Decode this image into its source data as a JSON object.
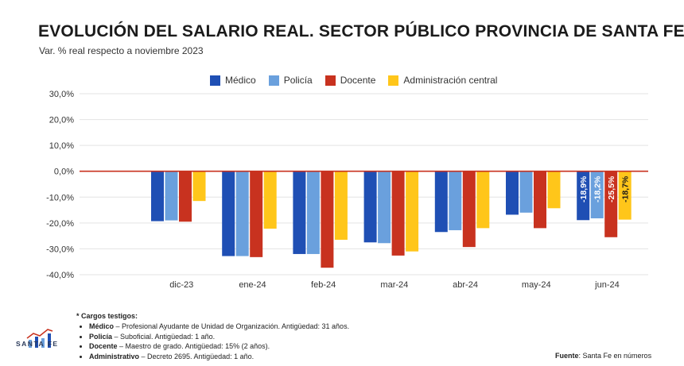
{
  "title": "EVOLUCIÓN DEL SALARIO REAL. SECTOR PÚBLICO PROVINCIA DE SANTA FE*",
  "subtitle": "Var. % real respecto a noviembre 2023",
  "chart_data": {
    "type": "bar",
    "categories": [
      "dic-23",
      "ene-24",
      "feb-24",
      "mar-24",
      "abr-24",
      "may-24",
      "jun-24"
    ],
    "series": [
      {
        "name": "Médico",
        "color": "#1f4fb4",
        "values": [
          -19.3,
          -32.8,
          -32.0,
          -27.5,
          -23.5,
          -16.8,
          -18.9
        ]
      },
      {
        "name": "Policía",
        "color": "#6aa0dd",
        "values": [
          -19.0,
          -32.8,
          -32.0,
          -27.8,
          -22.8,
          -16.0,
          -18.2
        ]
      },
      {
        "name": "Docente",
        "color": "#c8321f",
        "values": [
          -19.5,
          -33.2,
          -37.3,
          -32.6,
          -29.3,
          -22.0,
          -25.5
        ]
      },
      {
        "name": "Administración central",
        "color": "#ffc61a",
        "values": [
          -11.5,
          -22.2,
          -26.5,
          -31.0,
          -22.0,
          -14.3,
          -18.7
        ]
      }
    ],
    "data_labels": {
      "jun-24": [
        "-18,9%",
        "-18,2%",
        "-25,5%",
        "-18,7%"
      ]
    },
    "ylim": [
      -40,
      30
    ],
    "yticks": [
      "30,0%",
      "20,0%",
      "10,0%",
      "0,0%",
      "-10,0%",
      "-20,0%",
      "-30,0%",
      "-40,0%"
    ],
    "ytick_values": [
      30,
      20,
      10,
      0,
      -10,
      -20,
      -30,
      -40
    ],
    "zero_line_color": "#c8321f",
    "grid": true,
    "legend": "top-center"
  },
  "notes": {
    "header": "* Cargos testigos:",
    "items": [
      {
        "term": "Médico",
        "desc": " – Profesional Ayudante de Unidad de Organización. Antigüedad: 31 años."
      },
      {
        "term": "Policía",
        "desc": " – Suboficial. Antigüedad: 1 año."
      },
      {
        "term": "Docente",
        "desc": " – Maestro de grado. Antigüedad: 15% (2 años)."
      },
      {
        "term": "Administrativo",
        "desc": " – Decreto 2695. Antigüedad: 1 año."
      }
    ]
  },
  "source": {
    "label": "Fuente",
    "text": ": Santa Fe en números"
  },
  "logo": {
    "text": "SANTA FE"
  }
}
